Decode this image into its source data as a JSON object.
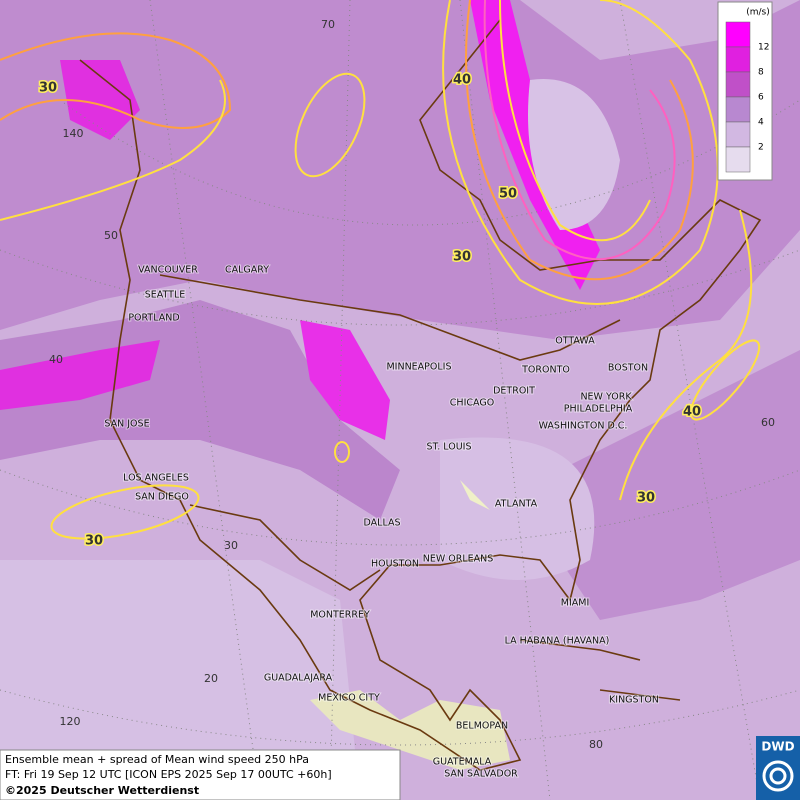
{
  "legend": {
    "unit": "(m/s)",
    "labels": [
      "12",
      "8",
      "6",
      "4",
      "2"
    ],
    "colors": [
      "#ff00ff",
      "#e020e0",
      "#c050c8",
      "#b888d0",
      "#d2b8e2",
      "#e6dcee"
    ]
  },
  "cities": [
    "VANCOUVER",
    "CALGARY",
    "SEATTLE",
    "PORTLAND",
    "MINNEAPOLIS",
    "TORONTO",
    "OTTAWA",
    "DETROIT",
    "CHICAGO",
    "BOSTON",
    "NEW YORK",
    "PHILADELPHIA",
    "WASHINGTON D.C.",
    "SAN JOSE",
    "ST. LOUIS",
    "LOS ANGELES",
    "SAN DIEGO",
    "ATLANTA",
    "DALLAS",
    "HOUSTON",
    "NEW ORLEANS",
    "MIAMI",
    "MONTERREY",
    "LA HABANA (HAVANA)",
    "GUADALAJARA",
    "MEXICO CITY",
    "KINGSTON",
    "BELMOPAN",
    "GUATEMALA",
    "SAN SALVADOR"
  ],
  "contour_labels": [
    30,
    40,
    50,
    30,
    40,
    30,
    30
  ],
  "graticule_labels": [
    70,
    140,
    50,
    40,
    60,
    30,
    20,
    120,
    80
  ],
  "footer": {
    "line1": "Ensemble mean + spread of Mean wind speed 250 hPa",
    "line2": "FT: Fri 19 Sep 12 UTC [ICON EPS 2025 Sep 17 00UTC +60h]",
    "line3": "©2025 Deutscher Wetterdienst"
  },
  "logo": "DWD"
}
